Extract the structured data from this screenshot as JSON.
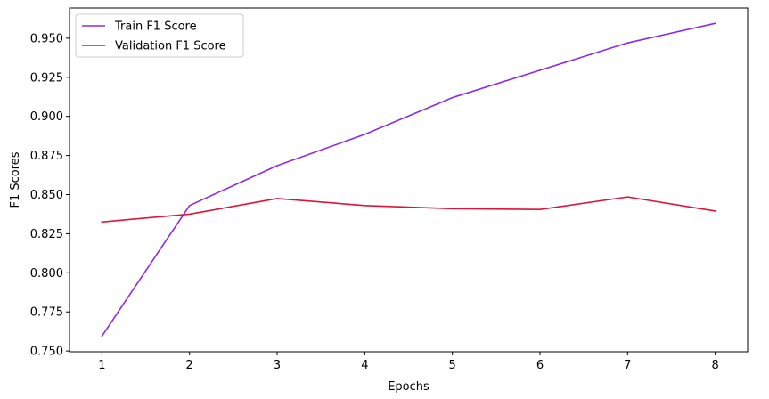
{
  "chart_data": {
    "type": "line",
    "title": "",
    "xlabel": "Epochs",
    "ylabel": "F1 Scores",
    "x": [
      1,
      2,
      3,
      4,
      5,
      6,
      7,
      8
    ],
    "xticks": [
      1,
      2,
      3,
      4,
      5,
      6,
      7,
      8
    ],
    "xlim": [
      0.63,
      8.37
    ],
    "yticks": [
      0.75,
      0.775,
      0.8,
      0.825,
      0.85,
      0.875,
      0.9,
      0.925,
      0.95
    ],
    "ytick_labels": [
      "0.750",
      "0.775",
      "0.800",
      "0.825",
      "0.850",
      "0.875",
      "0.900",
      "0.925",
      "0.950"
    ],
    "ylim": [
      0.7495,
      0.9693
    ],
    "grid": false,
    "legend_position": "upper-left",
    "series": [
      {
        "name": "Train F1 Score",
        "color": "#8a2be2",
        "values": [
          0.7595,
          0.843,
          0.8685,
          0.8885,
          0.912,
          0.9295,
          0.947,
          0.9595
        ]
      },
      {
        "name": "Validation F1 Score",
        "color": "#dc143c",
        "values": [
          0.8325,
          0.8375,
          0.8475,
          0.843,
          0.841,
          0.8405,
          0.8485,
          0.8395
        ]
      }
    ]
  }
}
